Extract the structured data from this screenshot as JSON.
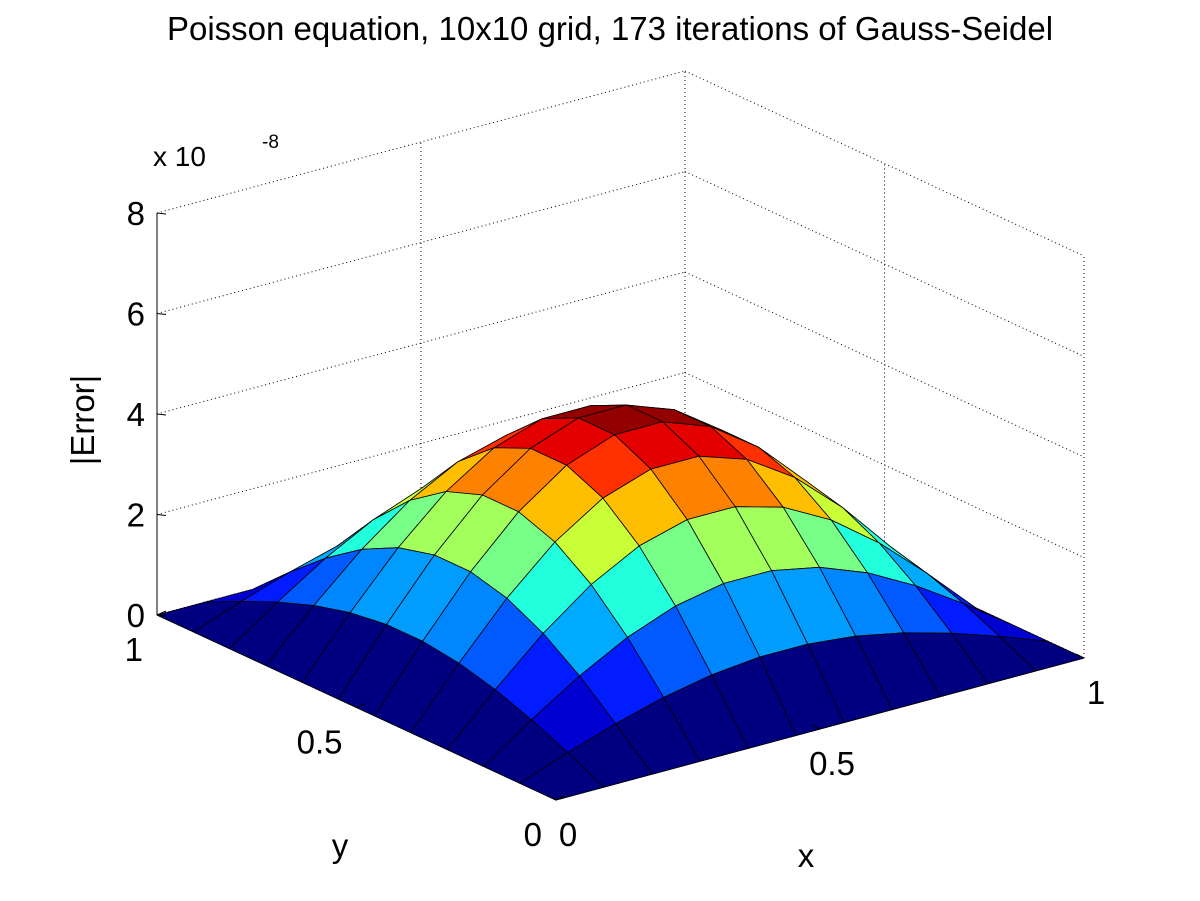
{
  "chart_data": {
    "type": "surface",
    "title": "Poisson equation, 10x10 grid, 173 iterations of Gauss-Seidel",
    "xlabel": "x",
    "ylabel": "y",
    "zlabel": "|Error|",
    "z_exponent_base": "x 10",
    "z_exponent_power": "-8",
    "xlim": [
      0,
      1
    ],
    "ylim": [
      0,
      1
    ],
    "zlim": [
      0,
      8
    ],
    "x_ticks": [
      "0",
      "0.5",
      "1"
    ],
    "y_ticks": [
      "0",
      "0.5",
      "1"
    ],
    "z_ticks": [
      "0",
      "2",
      "4",
      "6",
      "8"
    ],
    "grid": true,
    "colormap": "jet",
    "grid_points": 12,
    "peak_value": 4.4
  }
}
